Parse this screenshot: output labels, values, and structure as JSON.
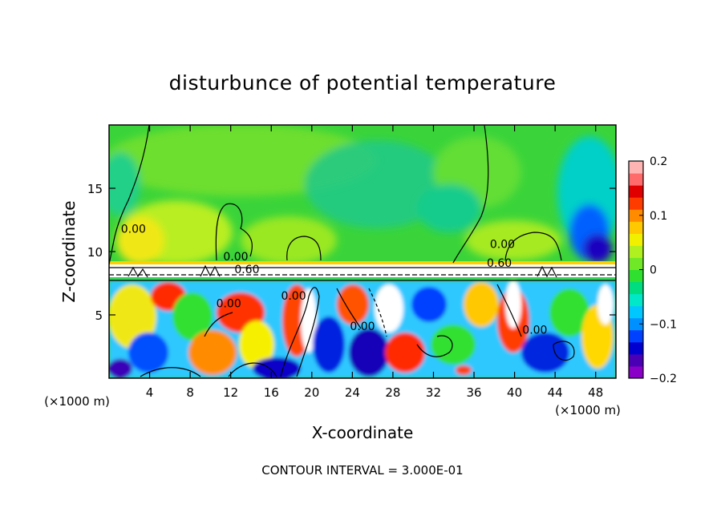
{
  "chart_data": {
    "type": "heatmap",
    "title": "disturbunce of potential temperature",
    "xlabel": "X-coordinate",
    "ylabel": "Z-coordinate",
    "x_unit_left": "(×1000 m)",
    "x_unit_right": "(×1000 m)",
    "footer": "CONTOUR INTERVAL = 3.000E-01",
    "xlim": [
      0,
      50
    ],
    "ylim": [
      0,
      20
    ],
    "xticks": [
      4,
      8,
      12,
      16,
      20,
      24,
      28,
      32,
      36,
      40,
      44,
      48
    ],
    "yticks": [
      5,
      10,
      15
    ],
    "colorbar": {
      "range": [
        -0.2,
        0.2
      ],
      "ticks": [
        {
          "value": 0.2,
          "label": "0.2"
        },
        {
          "value": 0.1,
          "label": "0.1"
        },
        {
          "value": 0,
          "label": "0"
        },
        {
          "value": -0.1,
          "label": "-0.1"
        },
        {
          "value": -0.2,
          "label": "-0.2"
        }
      ],
      "colors": [
        "#8a00c8",
        "#4a00b4",
        "#0000d0",
        "#0040ff",
        "#0090ff",
        "#00c8ff",
        "#00e8c8",
        "#00dc80",
        "#30e030",
        "#70e828",
        "#b0f020",
        "#f0f000",
        "#ffc800",
        "#ff8c00",
        "#ff3c00",
        "#e00000",
        "#ff6a6a",
        "#ffb4b4"
      ]
    },
    "contour_labels": [
      {
        "text": "0.00",
        "x": 2.4,
        "z": 11.5
      },
      {
        "text": "0.00",
        "x": 12.5,
        "z": 9.3
      },
      {
        "text": "0.60",
        "x": 13.6,
        "z": 8.3
      },
      {
        "text": "0.00",
        "x": 11.8,
        "z": 5.6
      },
      {
        "text": "0.00",
        "x": 18.2,
        "z": 6.2
      },
      {
        "text": "0.00",
        "x": 25.0,
        "z": 3.8
      },
      {
        "text": "0.60",
        "x": 38.5,
        "z": 8.8
      },
      {
        "text": "0.00",
        "x": 38.8,
        "z": 10.3
      },
      {
        "text": "0.00",
        "x": 42.0,
        "z": 3.5
      }
    ]
  }
}
